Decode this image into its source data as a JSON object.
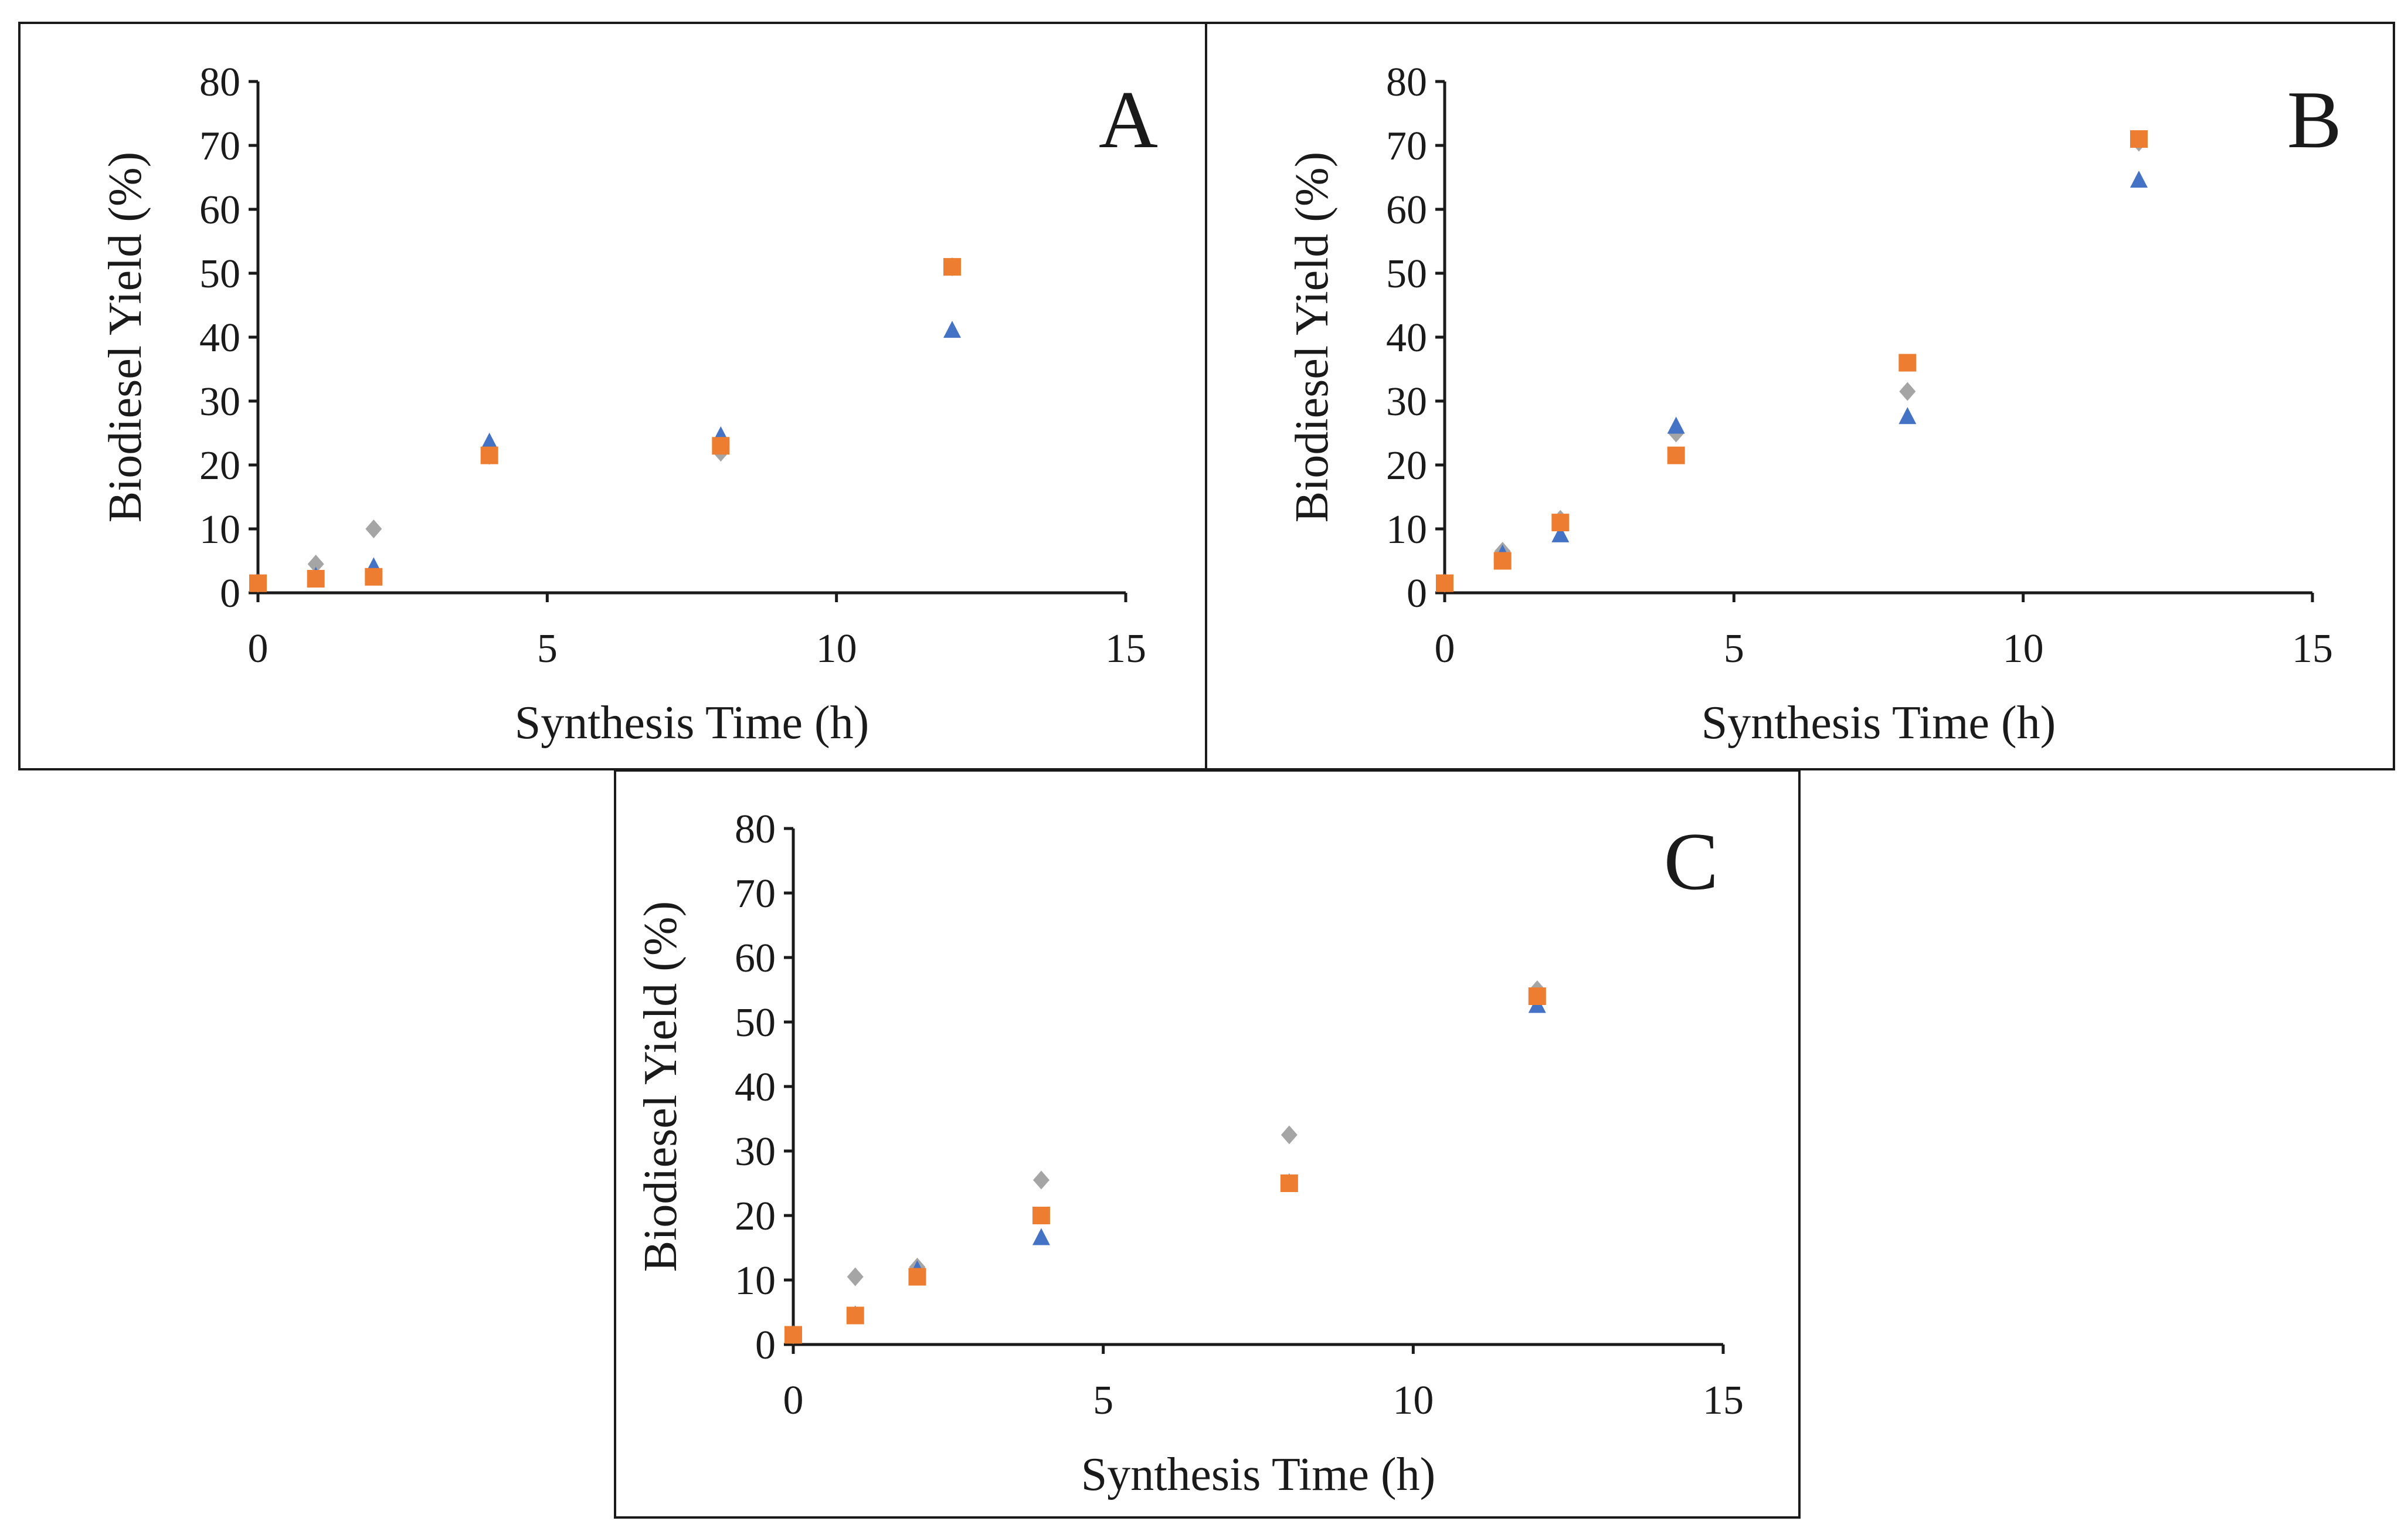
{
  "chart_data": [
    {
      "type": "scatter",
      "panel": "A",
      "xlabel": "Synthesis Time (h)",
      "ylabel": "Biodiesel Yield (%)",
      "xlim": [
        0,
        15
      ],
      "ylim": [
        0,
        80
      ],
      "xticks": [
        "0",
        "5",
        "10",
        "15"
      ],
      "yticks": [
        "0",
        "10",
        "20",
        "30",
        "40",
        "50",
        "60",
        "70",
        "80"
      ],
      "series": [
        {
          "name": "series-gray",
          "marker": "diamond",
          "color": "#a5a5a5",
          "x": [
            0,
            1,
            2,
            4,
            8,
            12
          ],
          "y": [
            1.5,
            4.5,
            10,
            21.5,
            22,
            51
          ]
        },
        {
          "name": "series-blue",
          "marker": "triangle",
          "color": "#4472c4",
          "x": [
            0,
            1,
            2,
            4,
            8,
            12
          ],
          "y": [
            1.5,
            2.5,
            4,
            23.5,
            24.5,
            41
          ]
        },
        {
          "name": "series-orange",
          "marker": "square",
          "color": "#ed7d31",
          "x": [
            0,
            1,
            2,
            4,
            8,
            12
          ],
          "y": [
            1.5,
            2.2,
            2.5,
            21.5,
            23,
            51
          ]
        }
      ]
    },
    {
      "type": "scatter",
      "panel": "B",
      "xlabel": "Synthesis Time (h)",
      "ylabel": "Biodiesel Yield (%)",
      "xlim": [
        0,
        15
      ],
      "ylim": [
        0,
        80
      ],
      "xticks": [
        "0",
        "5",
        "10",
        "15"
      ],
      "yticks": [
        "0",
        "10",
        "20",
        "30",
        "40",
        "50",
        "60",
        "70",
        "80"
      ],
      "series": [
        {
          "name": "series-gray",
          "marker": "diamond",
          "color": "#a5a5a5",
          "x": [
            0,
            1,
            2,
            4,
            8,
            12
          ],
          "y": [
            1.5,
            6.5,
            11.5,
            25,
            31.5,
            70.5
          ]
        },
        {
          "name": "series-blue",
          "marker": "triangle",
          "color": "#4472c4",
          "x": [
            0,
            1,
            2,
            4,
            8,
            12
          ],
          "y": [
            1.5,
            6,
            9,
            26,
            27.5,
            64.5
          ]
        },
        {
          "name": "series-orange",
          "marker": "square",
          "color": "#ed7d31",
          "x": [
            0,
            1,
            2,
            4,
            8,
            12
          ],
          "y": [
            1.5,
            5,
            11,
            21.5,
            36,
            71
          ]
        }
      ]
    },
    {
      "type": "scatter",
      "panel": "C",
      "xlabel": "Synthesis Time (h)",
      "ylabel": "Biodiesel Yield (%)",
      "xlim": [
        0,
        15
      ],
      "ylim": [
        0,
        80
      ],
      "xticks": [
        "0",
        "5",
        "10",
        "15"
      ],
      "yticks": [
        "0",
        "10",
        "20",
        "30",
        "40",
        "50",
        "60",
        "70",
        "80"
      ],
      "series": [
        {
          "name": "series-gray",
          "marker": "diamond",
          "color": "#a5a5a5",
          "x": [
            0,
            1,
            2,
            4,
            8,
            12
          ],
          "y": [
            1.5,
            10.5,
            12,
            25.5,
            32.5,
            55
          ]
        },
        {
          "name": "series-blue",
          "marker": "triangle",
          "color": "#4472c4",
          "x": [
            0,
            1,
            2,
            4,
            8,
            12
          ],
          "y": [
            1.5,
            4.5,
            11.5,
            16.5,
            25,
            52.5
          ]
        },
        {
          "name": "series-orange",
          "marker": "square",
          "color": "#ed7d31",
          "x": [
            0,
            1,
            2,
            4,
            8,
            12
          ],
          "y": [
            1.5,
            4.5,
            10.5,
            20,
            25,
            54
          ]
        }
      ]
    }
  ]
}
